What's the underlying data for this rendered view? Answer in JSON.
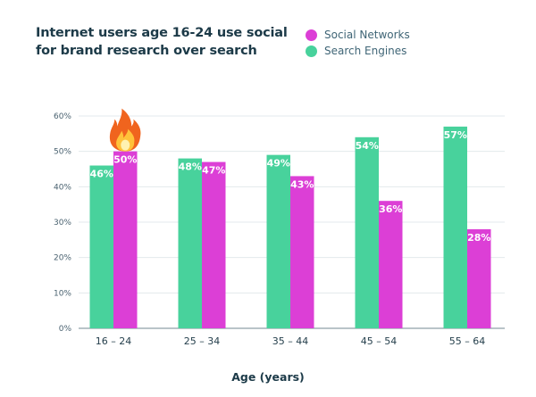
{
  "chart_data": {
    "type": "bar",
    "title": "Internet users age 16-24 use social for brand research over search",
    "xlabel": "Age (years)",
    "ylabel": "",
    "categories": [
      "16 – 24",
      "25 – 34",
      "35 – 44",
      "45 – 54",
      "55 – 64"
    ],
    "series": [
      {
        "name": "Search Engines",
        "values": [
          46,
          48,
          49,
          54,
          57
        ],
        "color": "#48d29c"
      },
      {
        "name": "Social Networks",
        "values": [
          50,
          47,
          43,
          36,
          28
        ],
        "color": "#dc3fd6"
      }
    ],
    "legend_order": [
      "Social Networks",
      "Search Engines"
    ],
    "ylim": [
      0,
      60
    ],
    "yticks": [
      "0%",
      "10%",
      "20%",
      "30%",
      "40%",
      "50%",
      "60%"
    ],
    "value_suffix": "%",
    "grid": true,
    "legend_placement": "top-right",
    "annotation_icon": "fire-icon"
  }
}
